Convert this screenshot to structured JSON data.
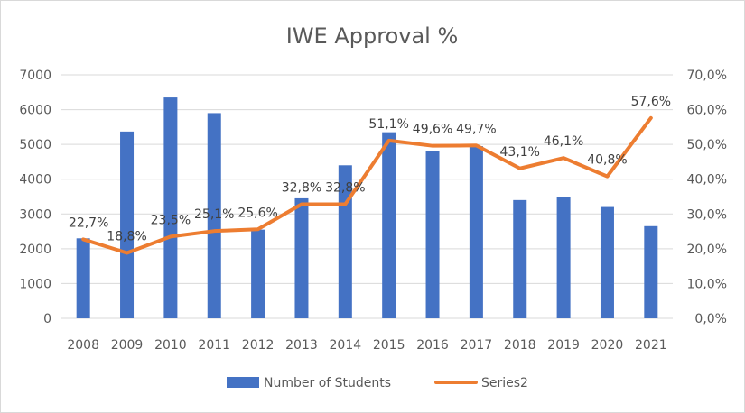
{
  "chart_data": {
    "type": "bar",
    "title": "IWE Approval %",
    "categories": [
      "2008",
      "2009",
      "2010",
      "2011",
      "2012",
      "2013",
      "2014",
      "2015",
      "2016",
      "2017",
      "2018",
      "2019",
      "2020",
      "2021"
    ],
    "series": [
      {
        "name": "Number of Students",
        "type": "bar",
        "axis": "left",
        "color": "#4472c4",
        "values": [
          2300,
          5370,
          6350,
          5900,
          2550,
          3450,
          4400,
          5350,
          4800,
          4950,
          3400,
          3500,
          3200,
          2650
        ]
      },
      {
        "name": "Series2",
        "type": "line",
        "axis": "right",
        "color": "#ed7d31",
        "values": [
          22.7,
          18.8,
          23.5,
          25.1,
          25.6,
          32.8,
          32.8,
          51.1,
          49.6,
          49.7,
          43.1,
          46.1,
          40.8,
          57.6
        ],
        "labels": [
          "22,7%",
          "18,8%",
          "23,5%",
          "25,1%",
          "25,6%",
          "32,8%",
          "32,8%",
          "51,1%",
          "49,6%",
          "49,7%",
          "43,1%",
          "46,1%",
          "40,8%",
          "57,6%"
        ]
      }
    ],
    "y_left": {
      "min": 0,
      "max": 7000,
      "ticks": [
        0,
        1000,
        2000,
        3000,
        4000,
        5000,
        6000,
        7000
      ],
      "tick_labels": [
        "0",
        "1000",
        "2000",
        "3000",
        "4000",
        "5000",
        "6000",
        "7000"
      ]
    },
    "y_right": {
      "min": 0,
      "max": 70,
      "ticks": [
        0,
        10,
        20,
        30,
        40,
        50,
        60,
        70
      ],
      "tick_labels": [
        "0,0%",
        "10,0%",
        "20,0%",
        "30,0%",
        "40,0%",
        "50,0%",
        "60,0%",
        "70,0%"
      ]
    },
    "grid": true,
    "legend": "bottom"
  }
}
